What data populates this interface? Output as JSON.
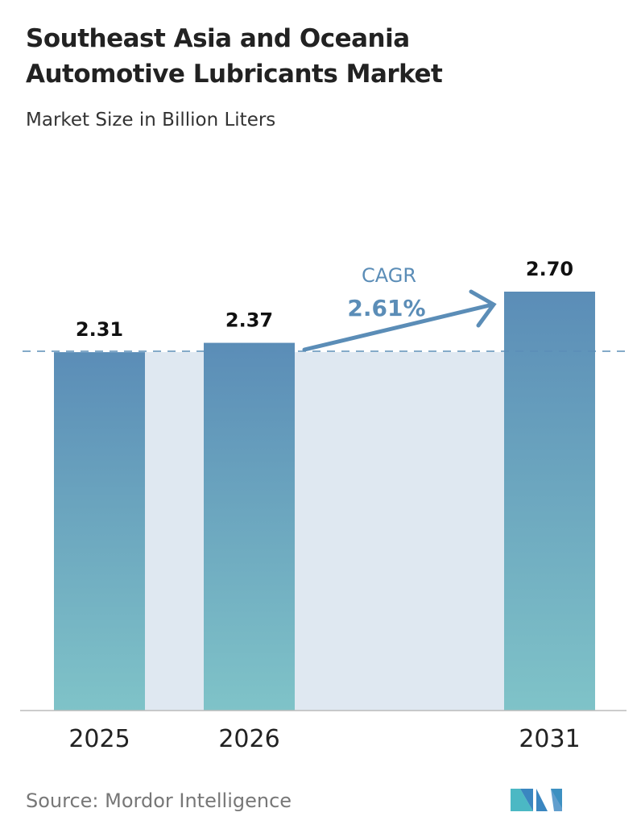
{
  "title_line1": "Southeast Asia and Oceania",
  "title_line2": "Automotive Lubricants Market",
  "subtitle": "Market Size in Billion Liters",
  "source": "Source:  Mordor Intelligence",
  "logo_text": "Mordor Intelligence",
  "colors": {
    "bar_top": "#5b8db7",
    "bar_bottom": "#7fc3c8",
    "band": "#dfe8f1",
    "accent": "#5b8db7"
  },
  "chart_data": {
    "type": "bar",
    "title": "Southeast Asia and Oceania Automotive Lubricants Market",
    "subtitle": "Market Size in Billion Liters",
    "categories": [
      "2025",
      "2026",
      "2031"
    ],
    "values": [
      2.31,
      2.37,
      2.7
    ],
    "data_labels": [
      "2.31",
      "2.37",
      "2.70"
    ],
    "ylim": [
      0,
      2.7
    ],
    "grid": false,
    "annotation": {
      "label": "CAGR",
      "value": "2.61%"
    }
  }
}
